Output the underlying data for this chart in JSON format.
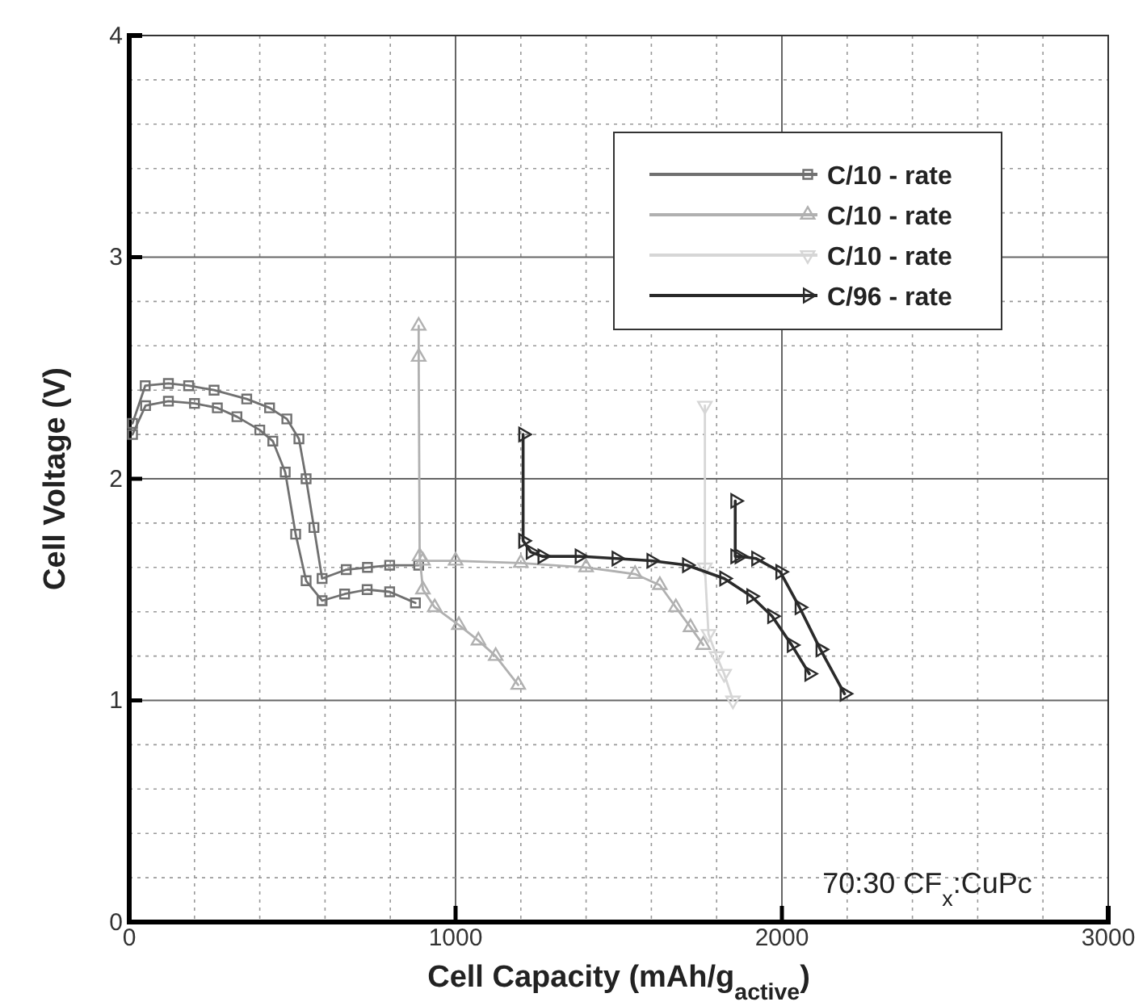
{
  "chart_data": {
    "type": "line",
    "xlabel": "Cell Capacity (mAh/g$_{active}$)",
    "ylabel": "Cell Voltage (V)",
    "xlim": [
      0,
      3000
    ],
    "xticks": [
      0,
      1000,
      2000,
      3000
    ],
    "ylim": [
      0,
      4
    ],
    "yticks": [
      0,
      1,
      2,
      3,
      4
    ],
    "grid": true,
    "legend": "top right",
    "line_style": "solid",
    "annotations": [
      "70:30 CF$_{x}$:CuPc"
    ],
    "series": [
      {
        "name": "C/10 - rate",
        "color": "#707070",
        "marker": "square",
        "x": [
          10,
          49,
          120,
          182,
          260,
          360,
          430,
          483,
          520,
          542,
          566,
          591,
          665,
          730,
          798,
          887,
          null,
          10,
          50,
          120,
          200,
          270,
          330,
          400,
          440,
          478,
          510,
          542,
          591,
          660,
          729,
          798,
          877
        ],
        "values": [
          2.25,
          2.42,
          2.43,
          2.42,
          2.4,
          2.36,
          2.32,
          2.27,
          2.18,
          2.0,
          1.78,
          1.55,
          1.59,
          1.6,
          1.61,
          1.61,
          null,
          2.2,
          2.33,
          2.35,
          2.34,
          2.32,
          2.28,
          2.22,
          2.17,
          2.03,
          1.75,
          1.54,
          1.45,
          1.48,
          1.5,
          1.49,
          1.44
        ]
      },
      {
        "name": "C/10 - rate",
        "color": "#b0b0b0",
        "marker": "triangle",
        "x": [
          887,
          887,
          890,
          900,
          936,
          1010,
          1070,
          1123,
          1192,
          null,
          900,
          1000,
          1200,
          1400,
          1550,
          1626,
          1675,
          1720,
          1759
        ],
        "values": [
          2.69,
          2.55,
          1.65,
          1.5,
          1.42,
          1.34,
          1.27,
          1.2,
          1.07,
          null,
          1.63,
          1.63,
          1.62,
          1.6,
          1.57,
          1.52,
          1.42,
          1.33,
          1.25
        ]
      },
      {
        "name": "C/10 - rate",
        "color": "#d6d6d6",
        "marker": "triangle-down",
        "x": [
          1764,
          1764,
          1775,
          1800,
          1823,
          1850
        ],
        "values": [
          2.33,
          1.6,
          1.3,
          1.2,
          1.12,
          1.0
        ]
      },
      {
        "name": "C/96 - rate",
        "color": "#2a2a2a",
        "marker": "triangle-right",
        "x": [
          1207,
          1207,
          1230,
          1266,
          1380,
          1493,
          1600,
          1709,
          1823,
          1906,
          1970,
          2030,
          2084,
          null,
          1857,
          1857,
          1870,
          1921,
          1995,
          2054,
          2118,
          2192
        ],
        "values": [
          2.2,
          1.72,
          1.67,
          1.65,
          1.65,
          1.64,
          1.63,
          1.61,
          1.55,
          1.47,
          1.38,
          1.25,
          1.12,
          null,
          1.9,
          1.65,
          1.65,
          1.64,
          1.58,
          1.42,
          1.23,
          1.03
        ]
      }
    ]
  }
}
